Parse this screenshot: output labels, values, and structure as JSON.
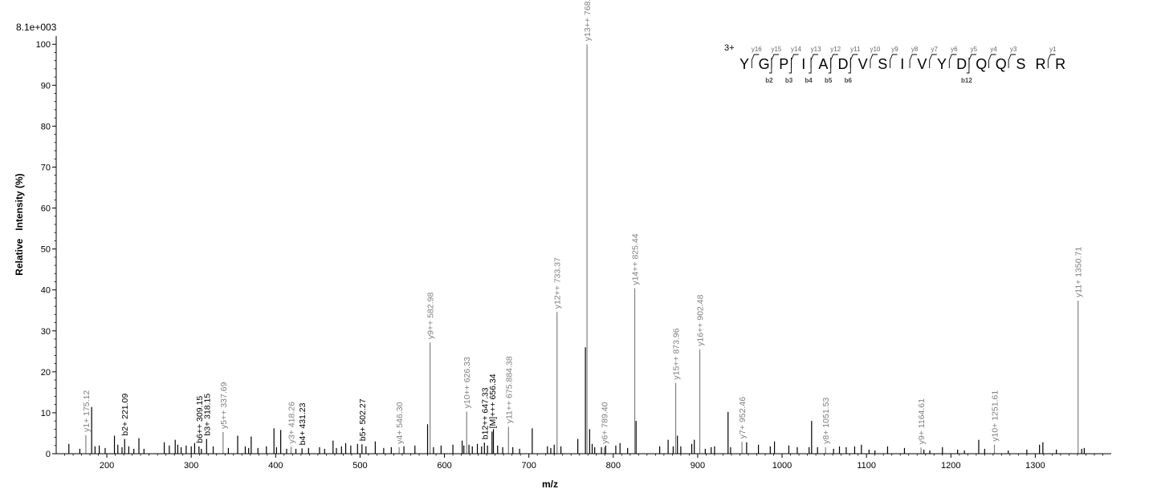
{
  "chart_data": {
    "type": "bar",
    "max_intensity_label": "8.1e+003",
    "ylabel": "Relative   Intensity (%)",
    "xlabel": "m/z",
    "xlim": [
      140,
      1390
    ],
    "ylim": [
      0,
      102
    ],
    "x_ticks": [
      200,
      300,
      400,
      500,
      600,
      700,
      800,
      900,
      1000,
      1100,
      1200,
      1300
    ],
    "x_tick_labels": [
      "200",
      "300",
      "400",
      "500",
      "600",
      "700",
      "800",
      "900",
      "1000",
      "1100",
      "1200",
      "1300"
    ],
    "y_ticks": [
      0,
      10,
      20,
      30,
      40,
      50,
      60,
      70,
      80,
      90,
      100
    ],
    "y_tick_labels": [
      "0",
      "10",
      "20",
      "30",
      "40",
      "50",
      "60",
      "70",
      "80",
      "90",
      "100"
    ],
    "annotated_peaks": [
      {
        "mz": 175.12,
        "intensity": 4.5,
        "label": "y1+ 175.12",
        "color": "#808080"
      },
      {
        "mz": 221.09,
        "intensity": 3.6,
        "label": "b2+ 221.09",
        "color": "#000000"
      },
      {
        "mz": 309.15,
        "intensity": 1.8,
        "label": "b6++ 309.15",
        "color": "#000000"
      },
      {
        "mz": 318.15,
        "intensity": 3.6,
        "label": "b3+ 318.15",
        "color": "#000000"
      },
      {
        "mz": 337.69,
        "intensity": 5.3,
        "label": "y5++ 337.69",
        "color": "#808080"
      },
      {
        "mz": 418.26,
        "intensity": 1.7,
        "label": "y3+ 418.26",
        "color": "#808080"
      },
      {
        "mz": 431.23,
        "intensity": 1.3,
        "label": "b4+ 431.23",
        "color": "#000000"
      },
      {
        "mz": 502.27,
        "intensity": 2.3,
        "label": "b5+ 502.27",
        "color": "#000000"
      },
      {
        "mz": 546.3,
        "intensity": 1.6,
        "label": "y4+ 546.30",
        "color": "#808080"
      },
      {
        "mz": 582.98,
        "intensity": 27.2,
        "label": "y9++ 582.98",
        "color": "#808080"
      },
      {
        "mz": 626.33,
        "intensity": 10.3,
        "label": "y10++ 626.33",
        "color": "#808080"
      },
      {
        "mz": 647.33,
        "intensity": 2.7,
        "label": "b12++ 647.33",
        "color": "#000000"
      },
      {
        "mz": 656.34,
        "intensity": 5.4,
        "label": "[M]+++ 656.34",
        "color": "#000000"
      },
      {
        "mz": 675.88,
        "intensity": 6.6,
        "label": "y11++ 675.884.38",
        "color": "#808080"
      },
      {
        "mz": 733.37,
        "intensity": 34.6,
        "label": "y12++ 733.37",
        "color": "#808080"
      },
      {
        "mz": 768.89,
        "intensity": 100.0,
        "label": "y13++ 768.89",
        "color": "#808080"
      },
      {
        "mz": 789.4,
        "intensity": 1.6,
        "label": "y6+ 789.40",
        "color": "#808080"
      },
      {
        "mz": 825.44,
        "intensity": 40.4,
        "label": "y14++ 825.44",
        "color": "#808080"
      },
      {
        "mz": 873.96,
        "intensity": 17.3,
        "label": "y15++ 873.96",
        "color": "#808080"
      },
      {
        "mz": 902.48,
        "intensity": 25.5,
        "label": "y16++ 902.48",
        "color": "#808080"
      },
      {
        "mz": 952.46,
        "intensity": 2.9,
        "label": "y7+ 952.46",
        "color": "#808080"
      },
      {
        "mz": 1051.53,
        "intensity": 1.6,
        "label": "y8+ 1051.53",
        "color": "#808080"
      },
      {
        "mz": 1164.61,
        "intensity": 1.5,
        "label": "y9+ 1164.61",
        "color": "#808080"
      },
      {
        "mz": 1251.61,
        "intensity": 2.2,
        "label": "y10+ 1251.61",
        "color": "#808080"
      },
      {
        "mz": 1350.71,
        "intensity": 37.4,
        "label": "y11+ 1350.71",
        "color": "#808080"
      }
    ],
    "unannotated_peaks": [
      {
        "mz": 155,
        "intensity": 2.4
      },
      {
        "mz": 168,
        "intensity": 1.2
      },
      {
        "mz": 182,
        "intensity": 11.4
      },
      {
        "mz": 186,
        "intensity": 1.8
      },
      {
        "mz": 191,
        "intensity": 2.0
      },
      {
        "mz": 198,
        "intensity": 1.4
      },
      {
        "mz": 209,
        "intensity": 4.4
      },
      {
        "mz": 213,
        "intensity": 2.2
      },
      {
        "mz": 218,
        "intensity": 1.6
      },
      {
        "mz": 226,
        "intensity": 1.8
      },
      {
        "mz": 232,
        "intensity": 1.2
      },
      {
        "mz": 238,
        "intensity": 3.8
      },
      {
        "mz": 244,
        "intensity": 1.2
      },
      {
        "mz": 268,
        "intensity": 2.8
      },
      {
        "mz": 274,
        "intensity": 2.0
      },
      {
        "mz": 281,
        "intensity": 3.4
      },
      {
        "mz": 284,
        "intensity": 2.2
      },
      {
        "mz": 288,
        "intensity": 1.6
      },
      {
        "mz": 294,
        "intensity": 2.0
      },
      {
        "mz": 300,
        "intensity": 1.8
      },
      {
        "mz": 304,
        "intensity": 2.6
      },
      {
        "mz": 312,
        "intensity": 1.2
      },
      {
        "mz": 326,
        "intensity": 1.8
      },
      {
        "mz": 344,
        "intensity": 1.4
      },
      {
        "mz": 355,
        "intensity": 4.4
      },
      {
        "mz": 364,
        "intensity": 1.8
      },
      {
        "mz": 368,
        "intensity": 1.4
      },
      {
        "mz": 371,
        "intensity": 4.2
      },
      {
        "mz": 379,
        "intensity": 1.4
      },
      {
        "mz": 389,
        "intensity": 1.8
      },
      {
        "mz": 398,
        "intensity": 6.2
      },
      {
        "mz": 401,
        "intensity": 1.6
      },
      {
        "mz": 406,
        "intensity": 5.8
      },
      {
        "mz": 413,
        "intensity": 1.2
      },
      {
        "mz": 424,
        "intensity": 1.2
      },
      {
        "mz": 439,
        "intensity": 1.4
      },
      {
        "mz": 452,
        "intensity": 1.6
      },
      {
        "mz": 458,
        "intensity": 1.2
      },
      {
        "mz": 468,
        "intensity": 3.2
      },
      {
        "mz": 472,
        "intensity": 1.4
      },
      {
        "mz": 478,
        "intensity": 1.8
      },
      {
        "mz": 483,
        "intensity": 2.6
      },
      {
        "mz": 489,
        "intensity": 2.0
      },
      {
        "mz": 497,
        "intensity": 2.4
      },
      {
        "mz": 507,
        "intensity": 1.8
      },
      {
        "mz": 518,
        "intensity": 3.0
      },
      {
        "mz": 528,
        "intensity": 1.4
      },
      {
        "mz": 537,
        "intensity": 1.6
      },
      {
        "mz": 552,
        "intensity": 1.8
      },
      {
        "mz": 565,
        "intensity": 2.0
      },
      {
        "mz": 580,
        "intensity": 7.2
      },
      {
        "mz": 587,
        "intensity": 1.6
      },
      {
        "mz": 596,
        "intensity": 2.0
      },
      {
        "mz": 610,
        "intensity": 2.2
      },
      {
        "mz": 621,
        "intensity": 3.2
      },
      {
        "mz": 623,
        "intensity": 2.0
      },
      {
        "mz": 629,
        "intensity": 2.2
      },
      {
        "mz": 633,
        "intensity": 1.8
      },
      {
        "mz": 639,
        "intensity": 2.4
      },
      {
        "mz": 644,
        "intensity": 1.8
      },
      {
        "mz": 651,
        "intensity": 2.0
      },
      {
        "mz": 658,
        "intensity": 6.0
      },
      {
        "mz": 663,
        "intensity": 2.0
      },
      {
        "mz": 669,
        "intensity": 1.6
      },
      {
        "mz": 681,
        "intensity": 1.6
      },
      {
        "mz": 689,
        "intensity": 1.2
      },
      {
        "mz": 704,
        "intensity": 6.2
      },
      {
        "mz": 722,
        "intensity": 1.8
      },
      {
        "mz": 726,
        "intensity": 1.4
      },
      {
        "mz": 730,
        "intensity": 2.2
      },
      {
        "mz": 738,
        "intensity": 1.8
      },
      {
        "mz": 758,
        "intensity": 3.6
      },
      {
        "mz": 767,
        "intensity": 26.0
      },
      {
        "mz": 772,
        "intensity": 6.0
      },
      {
        "mz": 775,
        "intensity": 2.4
      },
      {
        "mz": 778,
        "intensity": 1.6
      },
      {
        "mz": 786,
        "intensity": 1.6
      },
      {
        "mz": 791,
        "intensity": 2.0
      },
      {
        "mz": 803,
        "intensity": 2.0
      },
      {
        "mz": 808,
        "intensity": 2.6
      },
      {
        "mz": 817,
        "intensity": 1.4
      },
      {
        "mz": 827,
        "intensity": 8.0
      },
      {
        "mz": 855,
        "intensity": 1.8
      },
      {
        "mz": 865,
        "intensity": 3.4
      },
      {
        "mz": 871,
        "intensity": 1.8
      },
      {
        "mz": 876,
        "intensity": 4.4
      },
      {
        "mz": 880,
        "intensity": 1.8
      },
      {
        "mz": 893,
        "intensity": 2.4
      },
      {
        "mz": 896,
        "intensity": 3.4
      },
      {
        "mz": 909,
        "intensity": 1.2
      },
      {
        "mz": 916,
        "intensity": 1.6
      },
      {
        "mz": 920,
        "intensity": 1.8
      },
      {
        "mz": 936,
        "intensity": 10.2
      },
      {
        "mz": 939,
        "intensity": 1.6
      },
      {
        "mz": 958,
        "intensity": 2.8
      },
      {
        "mz": 972,
        "intensity": 2.2
      },
      {
        "mz": 986,
        "intensity": 1.8
      },
      {
        "mz": 991,
        "intensity": 3.0
      },
      {
        "mz": 1008,
        "intensity": 2.0
      },
      {
        "mz": 1018,
        "intensity": 1.6
      },
      {
        "mz": 1032,
        "intensity": 1.6
      },
      {
        "mz": 1035,
        "intensity": 8.0
      },
      {
        "mz": 1042,
        "intensity": 1.6
      },
      {
        "mz": 1061,
        "intensity": 1.2
      },
      {
        "mz": 1068,
        "intensity": 1.8
      },
      {
        "mz": 1076,
        "intensity": 1.6
      },
      {
        "mz": 1086,
        "intensity": 1.8
      },
      {
        "mz": 1094,
        "intensity": 2.2
      },
      {
        "mz": 1103,
        "intensity": 1.0
      },
      {
        "mz": 1110,
        "intensity": 0.8
      },
      {
        "mz": 1125,
        "intensity": 1.8
      },
      {
        "mz": 1145,
        "intensity": 1.4
      },
      {
        "mz": 1168,
        "intensity": 1.0
      },
      {
        "mz": 1175,
        "intensity": 0.8
      },
      {
        "mz": 1190,
        "intensity": 1.6
      },
      {
        "mz": 1208,
        "intensity": 1.0
      },
      {
        "mz": 1216,
        "intensity": 0.8
      },
      {
        "mz": 1233,
        "intensity": 3.4
      },
      {
        "mz": 1240,
        "intensity": 1.2
      },
      {
        "mz": 1268,
        "intensity": 0.8
      },
      {
        "mz": 1290,
        "intensity": 1.0
      },
      {
        "mz": 1305,
        "intensity": 2.2
      },
      {
        "mz": 1309,
        "intensity": 2.8
      },
      {
        "mz": 1325,
        "intensity": 1.0
      },
      {
        "mz": 1355,
        "intensity": 1.2
      },
      {
        "mz": 1358,
        "intensity": 1.4
      }
    ],
    "sequence": {
      "charge_label": "3+",
      "residues": [
        "Y",
        "G",
        "P",
        "I",
        "A",
        "D",
        "V",
        "S",
        "I",
        "V",
        "Y",
        "D",
        "Q",
        "Q",
        "S",
        "R",
        "R"
      ],
      "y_ions": [
        {
          "label": "y16",
          "after_index": 0
        },
        {
          "label": "y15",
          "after_index": 1
        },
        {
          "label": "y14",
          "after_index": 2
        },
        {
          "label": "y13",
          "after_index": 3
        },
        {
          "label": "y12",
          "after_index": 4
        },
        {
          "label": "y11",
          "after_index": 5
        },
        {
          "label": "y10",
          "after_index": 6
        },
        {
          "label": "y9",
          "after_index": 7
        },
        {
          "label": "y8",
          "after_index": 8
        },
        {
          "label": "y7",
          "after_index": 9
        },
        {
          "label": "y6",
          "after_index": 10
        },
        {
          "label": "y5",
          "after_index": 11
        },
        {
          "label": "y4",
          "after_index": 12
        },
        {
          "label": "y3",
          "after_index": 13
        },
        {
          "label": "y1",
          "after_index": 15
        }
      ],
      "b_ions": [
        {
          "label": "b2",
          "after_index": 1
        },
        {
          "label": "b3",
          "after_index": 2
        },
        {
          "label": "b4",
          "after_index": 3
        },
        {
          "label": "b5",
          "after_index": 4
        },
        {
          "label": "b6",
          "after_index": 5
        },
        {
          "label": "b12",
          "after_index": 11
        }
      ]
    }
  }
}
